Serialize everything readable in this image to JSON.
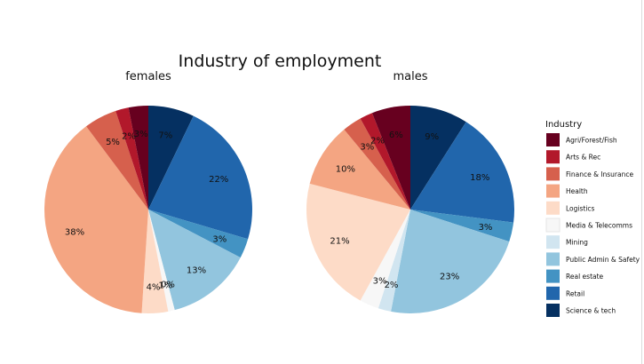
{
  "chart_data": {
    "type": "pie",
    "title": "Industry of employment",
    "legend": {
      "title": "Industry",
      "placement": "right"
    },
    "categories": [
      "Agri/Forest/Fish",
      "Arts & Rec",
      "Finance & Insurance",
      "Health",
      "Logistics",
      "Media & Telecomms",
      "Mining",
      "Public Admin & Safety",
      "Real estate",
      "Retail",
      "Science & tech"
    ],
    "colors": [
      "#67001f",
      "#b2182b",
      "#d6604d",
      "#f4a582",
      "#fddbc7",
      "#f7f7f7",
      "#d1e5f0",
      "#92c5de",
      "#4393c3",
      "#2166ac",
      "#053061"
    ],
    "series": [
      {
        "name": "females",
        "values": [
          3,
          2,
          5,
          38,
          4,
          1,
          0,
          13,
          3,
          22,
          7
        ],
        "labels": [
          "3%",
          "2%",
          "5%",
          "38%",
          "4%",
          "1%",
          "0%",
          "13%",
          "3%",
          "22%",
          "7%"
        ]
      },
      {
        "name": "males",
        "values": [
          6,
          2,
          3,
          10,
          21,
          3,
          2,
          23,
          3,
          18,
          9
        ],
        "labels": [
          "6%",
          "2%",
          "3%",
          "10%",
          "21%",
          "3%",
          "2%",
          "23%",
          "3%",
          "18%",
          "9%"
        ]
      }
    ]
  }
}
